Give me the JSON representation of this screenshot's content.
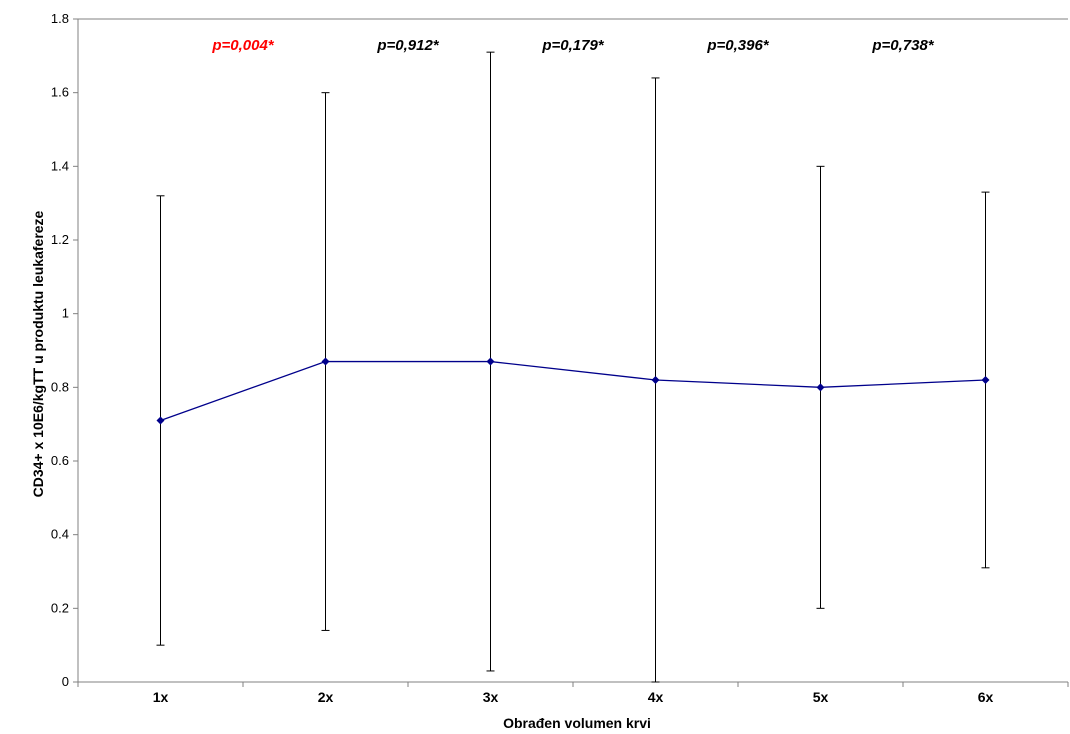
{
  "chart_data": {
    "type": "line",
    "categories": [
      "1x",
      "2x",
      "3x",
      "4x",
      "5x",
      "6x"
    ],
    "series": [
      {
        "values": [
          0.71,
          0.87,
          0.87,
          0.82,
          0.8,
          0.82
        ],
        "error_low": [
          0.1,
          0.14,
          0.03,
          0.0,
          0.2,
          0.31
        ],
        "error_high": [
          1.32,
          1.6,
          1.71,
          1.64,
          1.4,
          1.33
        ],
        "color": "#00008B"
      }
    ],
    "annotations": [
      {
        "text": "p=0,004*",
        "between": [
          "1x",
          "2x"
        ],
        "color": "#FF0000"
      },
      {
        "text": "p=0,912*",
        "between": [
          "2x",
          "3x"
        ],
        "color": "#000000"
      },
      {
        "text": "p=0,179*",
        "between": [
          "3x",
          "4x"
        ],
        "color": "#000000"
      },
      {
        "text": "p=0,396*",
        "between": [
          "4x",
          "5x"
        ],
        "color": "#000000"
      },
      {
        "text": "p=0,738*",
        "between": [
          "5x",
          "6x"
        ],
        "color": "#000000"
      }
    ],
    "xlabel": "Obrađen volumen krvi",
    "ylabel": "CD34+ x 10E6/kgTT u produktu leukafereze",
    "ylim": [
      0,
      1.8
    ],
    "yticks": [
      "0",
      "0.2",
      "0.4",
      "0.6",
      "0.8",
      "1",
      "1.2",
      "1.4",
      "1.6",
      "1.8"
    ],
    "grid": false,
    "legend": false
  }
}
